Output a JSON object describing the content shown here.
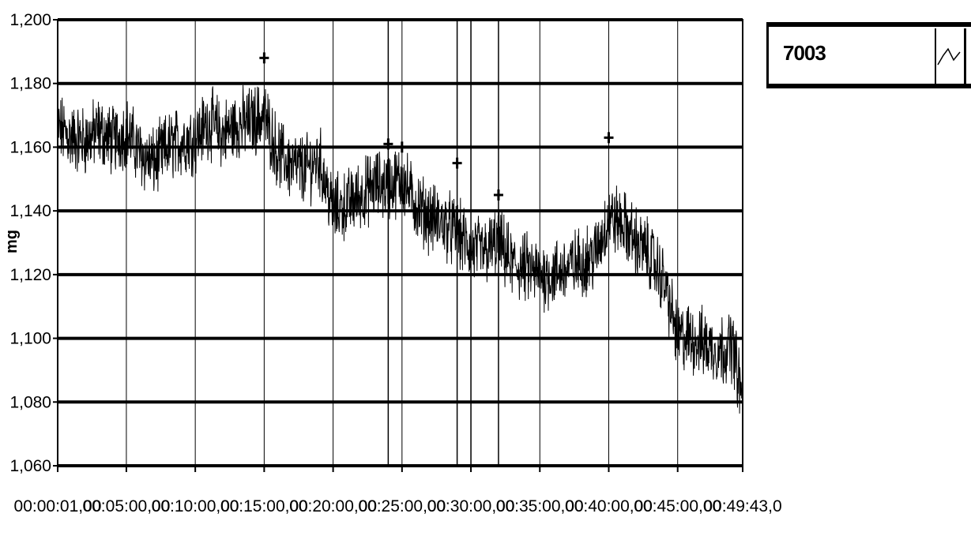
{
  "chart_data": {
    "type": "line",
    "title": "",
    "xlabel": "",
    "ylabel": "mg",
    "x_tick_labels": [
      "00:00:01,00",
      "00:05:00,00",
      "00:10:00,00",
      "00:15:00,00",
      "00:20:00,00",
      "00:25:00,00",
      "00:30:00,00",
      "00:35:00,00",
      "00:40:00,00",
      "00:45:00,00",
      "00:49:43,0"
    ],
    "x_ticks_seconds": [
      1,
      300,
      600,
      900,
      1200,
      1500,
      1800,
      2100,
      2400,
      2700,
      2983
    ],
    "y_tick_labels": [
      "1,060",
      "1,080",
      "1,100",
      "1,120",
      "1,140",
      "1,160",
      "1,180",
      "1,200"
    ],
    "xlim_seconds": [
      1,
      2983
    ],
    "ylim": [
      1060,
      1200
    ],
    "grid": true,
    "legend": "top-right",
    "series": [
      {
        "name": "7003",
        "color": "#000000",
        "x_seconds": [
          1,
          60,
          120,
          180,
          240,
          300,
          360,
          420,
          480,
          540,
          600,
          660,
          720,
          780,
          840,
          900,
          960,
          1020,
          1080,
          1140,
          1200,
          1260,
          1320,
          1380,
          1440,
          1500,
          1560,
          1620,
          1680,
          1740,
          1800,
          1860,
          1920,
          1980,
          2040,
          2100,
          2160,
          2220,
          2280,
          2340,
          2400,
          2460,
          2520,
          2580,
          2640,
          2700,
          2760,
          2820,
          2880,
          2940,
          2983
        ],
        "values": [
          1166,
          1163,
          1162,
          1165,
          1162,
          1165,
          1158,
          1155,
          1160,
          1162,
          1163,
          1168,
          1164,
          1167,
          1168,
          1170,
          1158,
          1154,
          1153,
          1156,
          1140,
          1142,
          1145,
          1148,
          1148,
          1150,
          1142,
          1138,
          1136,
          1133,
          1128,
          1127,
          1130,
          1123,
          1122,
          1120,
          1120,
          1122,
          1124,
          1126,
          1138,
          1136,
          1130,
          1126,
          1118,
          1100,
          1100,
          1098,
          1096,
          1098,
          1080
        ]
      }
    ],
    "markers": [
      {
        "x_seconds": 900,
        "value": 1188
      },
      {
        "x_seconds": 1440,
        "value": 1161
      },
      {
        "x_seconds": 1500,
        "value": 1160
      },
      {
        "x_seconds": 1740,
        "value": 1155
      },
      {
        "x_seconds": 1920,
        "value": 1145
      },
      {
        "x_seconds": 2400,
        "value": 1163
      }
    ],
    "vertical_lines_seconds": [
      1440,
      1740,
      1800,
      1920
    ]
  }
}
